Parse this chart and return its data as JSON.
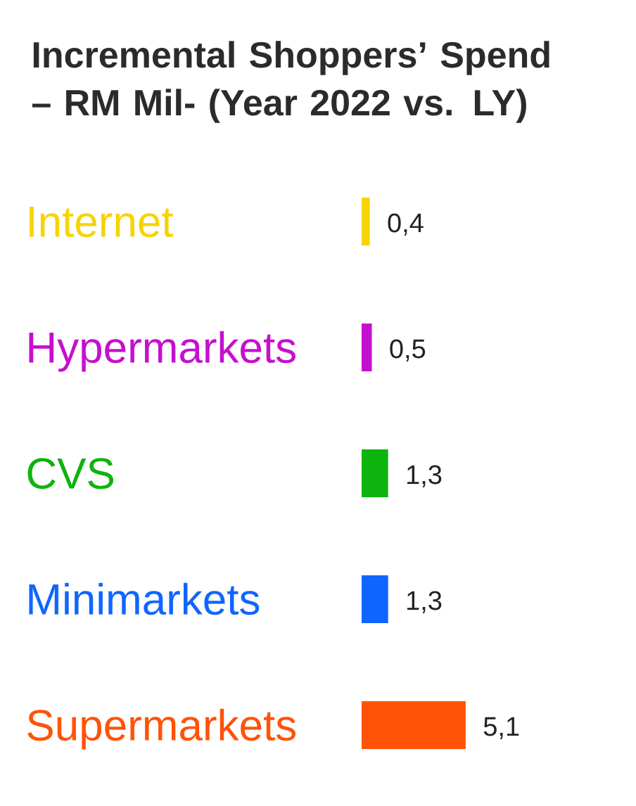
{
  "chart_data": {
    "type": "bar",
    "orientation": "horizontal",
    "title": "Incremental Shoppers’ Spend – RM Mil- (Year 2022 vs. LY)",
    "categories": [
      "Internet",
      "Hypermarkets",
      "CVS",
      "Minimarkets",
      "Supermarkets"
    ],
    "values": [
      0.4,
      0.5,
      1.3,
      1.3,
      5.1
    ],
    "colors": [
      "#f7d300",
      "#c50fcf",
      "#0db40d",
      "#0f66ff",
      "#ff5308"
    ],
    "value_labels": [
      "0,4",
      "0,5",
      "1,3",
      "1,3",
      "5,1"
    ]
  }
}
